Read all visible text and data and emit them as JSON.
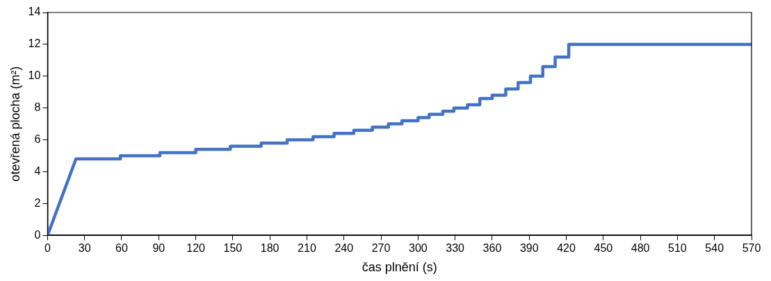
{
  "chart_data": {
    "type": "line",
    "xlabel": "čas plnění (s)",
    "ylabel": "otevřená plocha (m²)",
    "xlim": [
      0,
      570
    ],
    "xticks": [
      0,
      30,
      60,
      90,
      120,
      150,
      180,
      210,
      240,
      270,
      300,
      330,
      360,
      390,
      420,
      450,
      480,
      510,
      540,
      570
    ],
    "ylim": [
      0,
      14
    ],
    "yticks": [
      0,
      2,
      4,
      6,
      8,
      10,
      12,
      14
    ],
    "grid": false,
    "legend": false,
    "marker": "none",
    "line_style": "solid",
    "series": [
      {
        "color": "#4472c4",
        "x": [
          0,
          23,
          59,
          59,
          91,
          91,
          120,
          120,
          148,
          148,
          173,
          173,
          194,
          194,
          215,
          215,
          232,
          232,
          248,
          248,
          263,
          263,
          276,
          276,
          287,
          287,
          300,
          300,
          309,
          309,
          320,
          320,
          329,
          329,
          340,
          340,
          350,
          350,
          360,
          360,
          371,
          371,
          381,
          381,
          391,
          391,
          401,
          401,
          411,
          411,
          422,
          422,
          570
        ],
        "values": [
          0,
          4.8,
          4.8,
          5.0,
          5.0,
          5.2,
          5.2,
          5.4,
          5.4,
          5.6,
          5.6,
          5.8,
          5.8,
          6.0,
          6.0,
          6.2,
          6.2,
          6.4,
          6.4,
          6.6,
          6.6,
          6.8,
          6.8,
          7.0,
          7.0,
          7.2,
          7.2,
          7.4,
          7.4,
          7.6,
          7.6,
          7.8,
          7.8,
          8.0,
          8.0,
          8.2,
          8.2,
          8.6,
          8.6,
          8.8,
          8.8,
          9.2,
          9.2,
          9.6,
          9.6,
          10.0,
          10.0,
          10.6,
          10.6,
          11.2,
          11.2,
          12.0,
          12.0
        ]
      }
    ]
  }
}
